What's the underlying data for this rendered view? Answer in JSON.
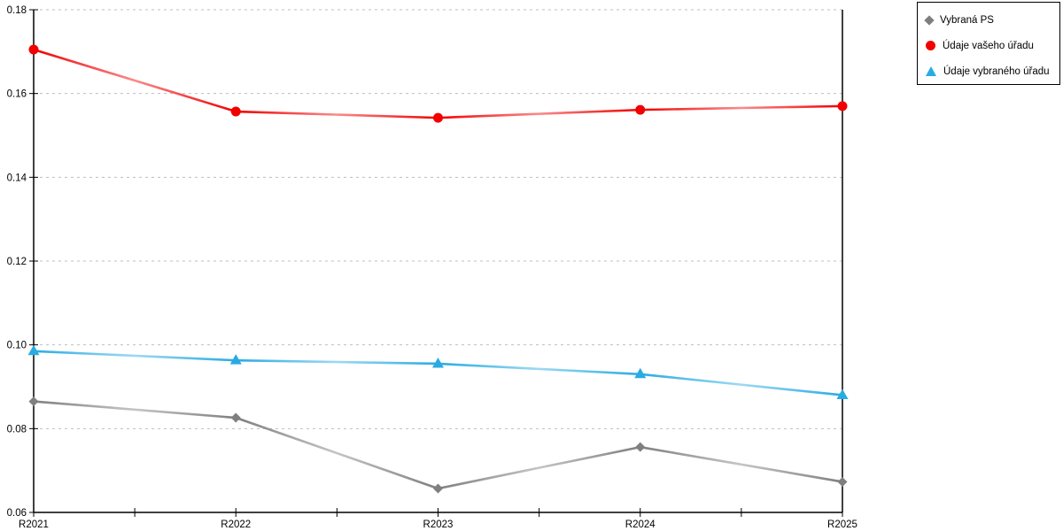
{
  "chart_data": {
    "type": "line",
    "title": "",
    "xlabel": "",
    "ylabel": "",
    "categories": [
      "R2021",
      "R2022",
      "R2023",
      "R2024",
      "R2025"
    ],
    "series": [
      {
        "name": "Vybraná PS",
        "marker": "diamond",
        "color": "#7f7f7f",
        "values": [
          0.0865,
          0.0826,
          0.0657,
          0.0756,
          0.0673
        ]
      },
      {
        "name": "Údaje vašeho úřadu",
        "marker": "circle",
        "color": "#f20000",
        "values": [
          0.1705,
          0.1557,
          0.1542,
          0.1561,
          0.157
        ]
      },
      {
        "name": "Údaje vybraného úřadu",
        "marker": "triangle",
        "color": "#29abe2",
        "values": [
          0.0985,
          0.0963,
          0.0955,
          0.093,
          0.088
        ]
      }
    ],
    "ylim": [
      0.06,
      0.18
    ],
    "yticks": [
      0.06,
      0.08,
      0.1,
      0.12,
      0.14,
      0.16,
      0.18
    ],
    "ytick_labels": [
      "0.06",
      "0.08",
      "0.10",
      "0.12",
      "0.14",
      "0.16",
      "0.18"
    ],
    "grid": "horizontal dotted gridlines at each y tick",
    "x_minor_ticks": "midpoints between categories",
    "legend_position": "top-right",
    "colors": {
      "axis": "#000000",
      "gridline": "#bfbfbf",
      "tick_label": "#000000",
      "background": "#ffffff"
    }
  }
}
